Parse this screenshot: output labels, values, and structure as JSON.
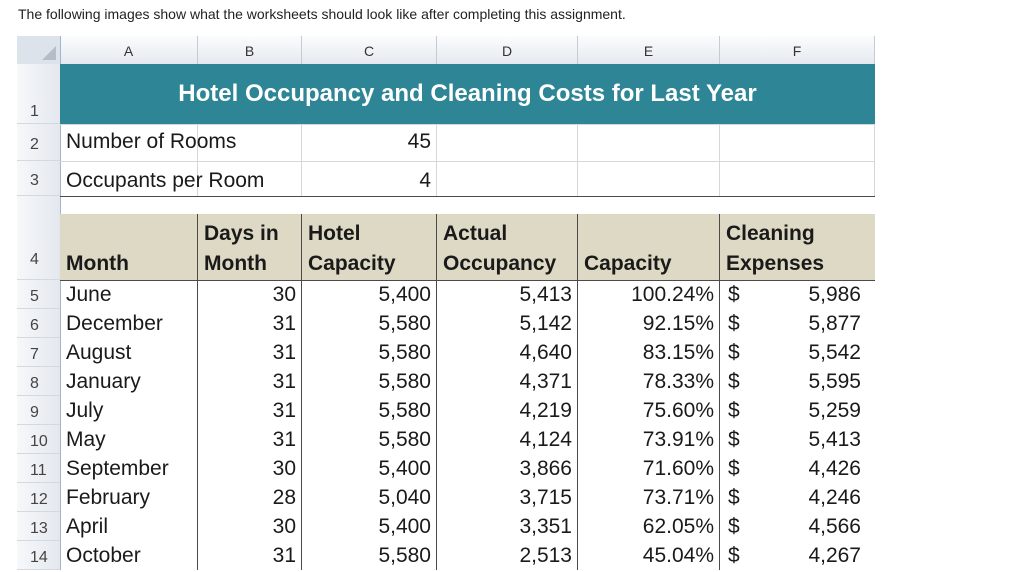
{
  "intro_text": "The following images show what the worksheets should look like after completing this assignment.",
  "columns": [
    "A",
    "B",
    "C",
    "D",
    "E",
    "F"
  ],
  "row_numbers": [
    "1",
    "2",
    "3",
    "4",
    "5",
    "6",
    "7",
    "8",
    "9",
    "10",
    "11",
    "12",
    "13",
    "14"
  ],
  "title": "Hotel Occupancy and Cleaning Costs for Last Year",
  "inputs": [
    {
      "label": "Number of Rooms",
      "value": "45"
    },
    {
      "label": "Occupants per Room",
      "value": "4"
    }
  ],
  "headers": {
    "month": "Month",
    "days_l1": "Days in",
    "days_l2": "Month",
    "hotel_l1": "Hotel",
    "hotel_l2": "Capacity",
    "actual_l1": "Actual",
    "actual_l2": "Occupancy",
    "capacity": "Capacity",
    "clean_l1": "Cleaning",
    "clean_l2": "Expenses"
  },
  "currency_symbol": "$",
  "rows": [
    {
      "month": "June",
      "days": "30",
      "hotel": "5,400",
      "actual": "5,413",
      "capacity": "100.24%",
      "cleaning": "5,986"
    },
    {
      "month": "December",
      "days": "31",
      "hotel": "5,580",
      "actual": "5,142",
      "capacity": "92.15%",
      "cleaning": "5,877"
    },
    {
      "month": "August",
      "days": "31",
      "hotel": "5,580",
      "actual": "4,640",
      "capacity": "83.15%",
      "cleaning": "5,542"
    },
    {
      "month": "January",
      "days": "31",
      "hotel": "5,580",
      "actual": "4,371",
      "capacity": "78.33%",
      "cleaning": "5,595"
    },
    {
      "month": "July",
      "days": "31",
      "hotel": "5,580",
      "actual": "4,219",
      "capacity": "75.60%",
      "cleaning": "5,259"
    },
    {
      "month": "May",
      "days": "31",
      "hotel": "5,580",
      "actual": "4,124",
      "capacity": "73.91%",
      "cleaning": "5,413"
    },
    {
      "month": "September",
      "days": "30",
      "hotel": "5,400",
      "actual": "3,866",
      "capacity": "71.60%",
      "cleaning": "4,426"
    },
    {
      "month": "February",
      "days": "28",
      "hotel": "5,040",
      "actual": "3,715",
      "capacity": "73.71%",
      "cleaning": "4,246"
    },
    {
      "month": "April",
      "days": "30",
      "hotel": "5,400",
      "actual": "3,351",
      "capacity": "62.05%",
      "cleaning": "4,566"
    },
    {
      "month": "October",
      "days": "31",
      "hotel": "5,580",
      "actual": "2,513",
      "capacity": "45.04%",
      "cleaning": "4,267"
    }
  ],
  "colors": {
    "title_bar": "#2e8595",
    "header_fill": "#ddd9c4"
  }
}
